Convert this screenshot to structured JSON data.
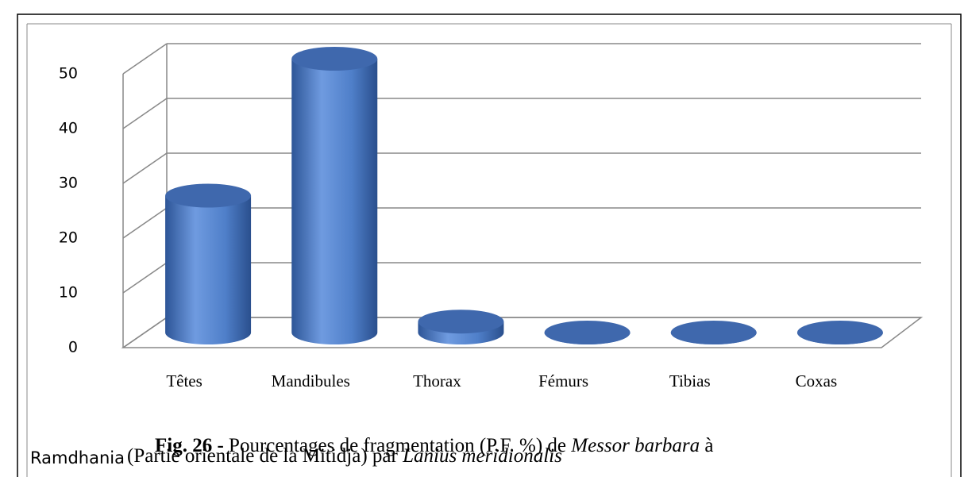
{
  "chart_data": {
    "type": "bar",
    "categories": [
      "Têtes",
      "Mandibules",
      "Thorax",
      "Fémurs",
      "Tibias",
      "Coxas"
    ],
    "values": [
      25,
      50,
      2,
      0,
      0,
      0
    ],
    "color": "#4f7fc9",
    "ylim": [
      0,
      50
    ],
    "yticks": [
      0,
      10,
      20,
      30,
      40,
      50
    ],
    "grid": true,
    "caption": {
      "label": "Fig. 26 -",
      "text1": "Pourcentages de fragmentation (P.F. %) de",
      "species": "Messor barbara",
      "text2": "à",
      "location": "Ramdhania",
      "text3": "(Partie orientale de la Mitidja) par",
      "predator": "Lanius meridionalis"
    }
  }
}
